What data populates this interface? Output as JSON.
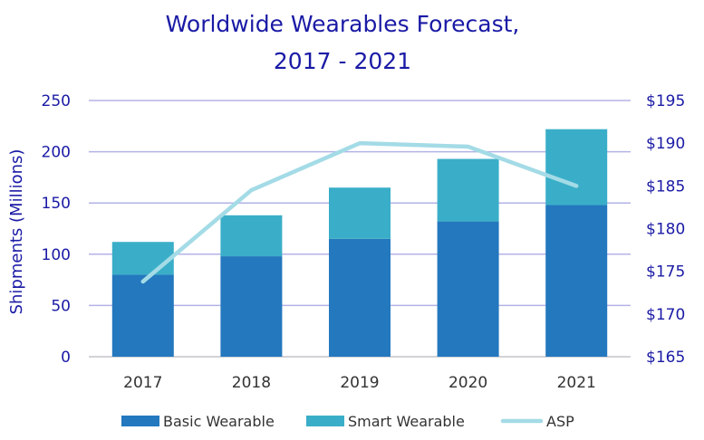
{
  "chart_data": {
    "type": "bar",
    "stacked": true,
    "title": [
      "Worldwide Wearables Forecast,",
      "2017 - 2021"
    ],
    "ylabel": "Shipments (Millions)",
    "categories": [
      "2017",
      "2018",
      "2019",
      "2020",
      "2021"
    ],
    "series": [
      {
        "name": "Basic Wearable",
        "type": "bar",
        "axis": "left",
        "color": "#2478be",
        "values": [
          80,
          98,
          115,
          132,
          148
        ]
      },
      {
        "name": "Smart Wearable",
        "type": "bar",
        "axis": "left",
        "color": "#3aaec8",
        "values": [
          32,
          40,
          50,
          61,
          74
        ]
      },
      {
        "name": "ASP",
        "type": "line",
        "axis": "right",
        "color": "#a3dbe6",
        "values": [
          173.8,
          184.5,
          190.0,
          189.6,
          185.0
        ]
      }
    ],
    "yleft": {
      "min": 0,
      "max": 250,
      "ticks": [
        "0",
        "50",
        "100",
        "150",
        "200",
        "250"
      ]
    },
    "yright": {
      "min": 165,
      "max": 195,
      "ticks": [
        "$165",
        "$170",
        "$175",
        "$180",
        "$185",
        "$190",
        "$195"
      ]
    },
    "grid": true,
    "legend_position": "bottom",
    "text_color": "#1a1aa6",
    "grid_color": "#b3b3e6"
  }
}
